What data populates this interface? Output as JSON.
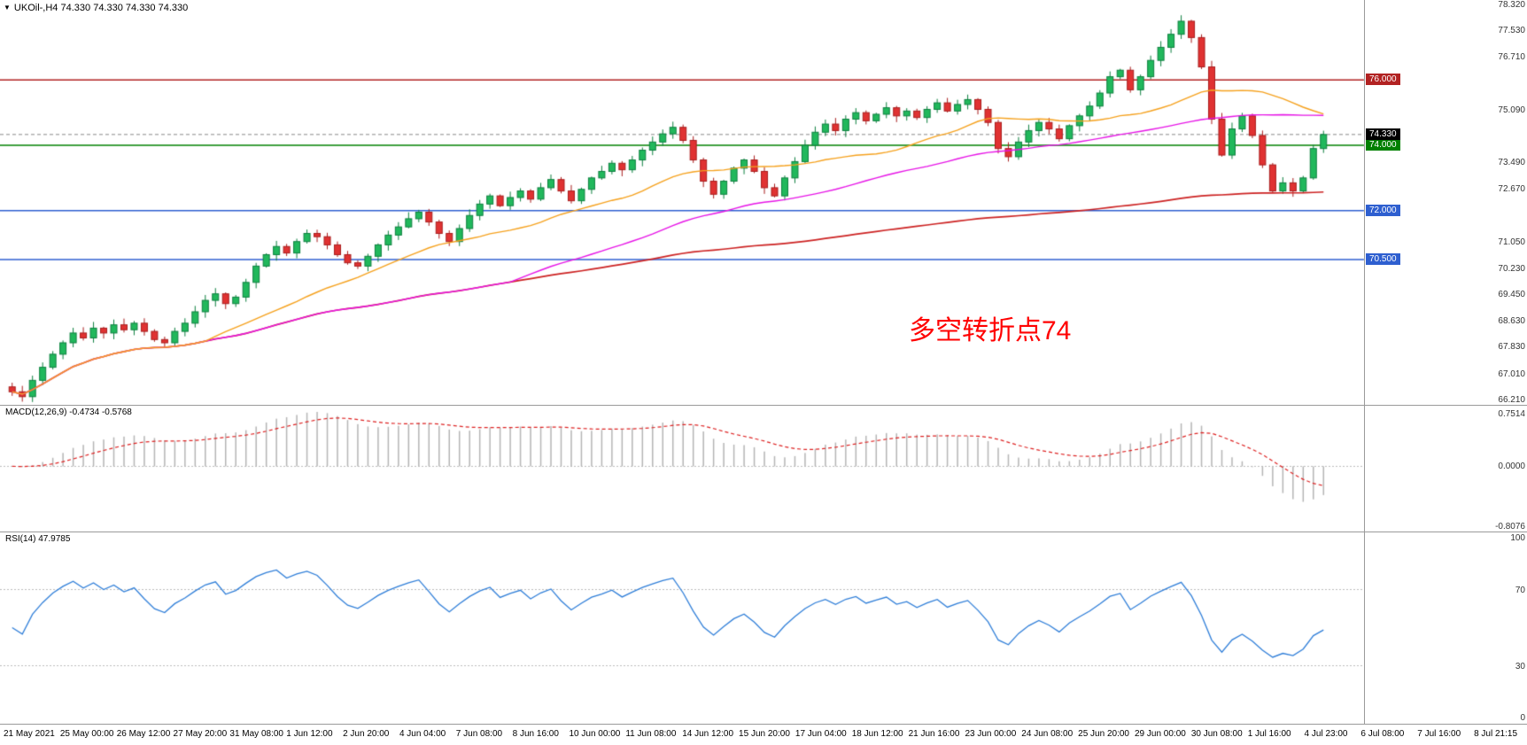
{
  "header": {
    "dropdown_icon": "▼",
    "symbol_period": "UKOil-,H4",
    "ohlc_values": "74.330 74.330 74.330 74.330"
  },
  "annotation": {
    "text": "多空转折点74",
    "color": "#ff0000"
  },
  "colors": {
    "up_fill": "#21b85c",
    "up_stroke": "#0c7f3e",
    "down_fill": "#e03232",
    "down_stroke": "#a81d1d",
    "ma_fast": "#f5a11d",
    "ma_mid": "#e614e6",
    "ma_slow": "#cc2222",
    "macd_hist": "#b5b5b5",
    "macd_signal": "#dd2222",
    "rsi_line": "#2f7ed8",
    "axis_text": "#333333",
    "level_dotted": "#bbbbbb",
    "current_price_line": "#888888"
  },
  "chart_data": [
    {
      "type": "candlestick",
      "title": "UKOil- H4",
      "first_open": 66.6,
      "closes": [
        66.45,
        66.3,
        66.8,
        67.2,
        67.6,
        67.95,
        68.25,
        68.1,
        68.4,
        68.25,
        68.5,
        68.35,
        68.55,
        68.3,
        68.05,
        67.95,
        68.3,
        68.55,
        68.9,
        69.25,
        69.45,
        69.15,
        69.35,
        69.8,
        70.3,
        70.65,
        70.9,
        70.7,
        71.05,
        71.3,
        71.2,
        70.95,
        70.65,
        70.4,
        70.3,
        70.6,
        70.95,
        71.25,
        71.5,
        71.75,
        71.95,
        71.65,
        71.3,
        71.05,
        71.45,
        71.85,
        72.2,
        72.45,
        72.15,
        72.4,
        72.6,
        72.35,
        72.7,
        72.95,
        72.6,
        72.3,
        72.65,
        73.0,
        73.2,
        73.45,
        73.25,
        73.55,
        73.85,
        74.1,
        74.35,
        74.55,
        74.15,
        73.55,
        72.9,
        72.5,
        72.9,
        73.3,
        73.55,
        73.2,
        72.7,
        72.45,
        73.0,
        73.5,
        74.0,
        74.4,
        74.65,
        74.45,
        74.8,
        75.0,
        74.75,
        74.95,
        75.15,
        74.9,
        75.05,
        74.85,
        75.1,
        75.3,
        75.05,
        75.25,
        75.4,
        75.1,
        74.7,
        73.9,
        73.65,
        74.1,
        74.45,
        74.7,
        74.5,
        74.2,
        74.6,
        74.9,
        75.2,
        75.6,
        76.1,
        76.3,
        75.7,
        76.1,
        76.6,
        77.0,
        77.4,
        77.8,
        77.3,
        76.4,
        74.8,
        73.7,
        74.5,
        74.9,
        74.3,
        73.4,
        72.6,
        72.85,
        72.6,
        73.0,
        73.9,
        74.33
      ],
      "y_axis": {
        "min": 66.05,
        "max": 78.45,
        "gridline_labels": [
          "78.320",
          "77.530",
          "76.710",
          "75.090",
          "73.490",
          "72.670",
          "71.050",
          "70.230",
          "69.450",
          "68.630",
          "67.830",
          "67.010",
          "66.210"
        ]
      },
      "hlines": [
        {
          "label": "76.000",
          "value": 76.0,
          "color": "#b22222"
        },
        {
          "label": "74.000",
          "value": 74.0,
          "color": "#008000"
        },
        {
          "label": "72.000",
          "value": 72.0,
          "color": "#2e5fd0"
        },
        {
          "label": "70.500",
          "value": 70.5,
          "color": "#2e5fd0"
        }
      ],
      "current_price": {
        "label": "74.330",
        "value": 74.33,
        "badge_bg": "#000000"
      },
      "moving_averages": [
        {
          "name": "fast-ma",
          "period": 20
        },
        {
          "name": "mid-ma",
          "period": 50
        },
        {
          "name": "slow-ma",
          "period": 999
        }
      ],
      "x_labels": [
        "21 May 2021",
        "25 May 00:00",
        "26 May 12:00",
        "27 May 20:00",
        "31 May 08:00",
        "1 Jun 12:00",
        "2 Jun 20:00",
        "4 Jun 04:00",
        "7 Jun 08:00",
        "8 Jun 16:00",
        "10 Jun 00:00",
        "11 Jun 08:00",
        "14 Jun 12:00",
        "15 Jun 20:00",
        "17 Jun 04:00",
        "18 Jun 12:00",
        "21 Jun 16:00",
        "23 Jun 00:00",
        "24 Jun 08:00",
        "25 Jun 20:00",
        "29 Jun 00:00",
        "30 Jun 08:00",
        "1 Jul 16:00",
        "4 Jul 23:00",
        "6 Jul 08:00",
        "7 Jul 16:00",
        "8 Jul 21:15"
      ]
    },
    {
      "type": "bar",
      "name": "MACD",
      "label": "MACD(12,26,9) -0.4734 -0.5768",
      "params": [
        12,
        26,
        9
      ],
      "current_values": [
        -0.4734,
        -0.5768
      ],
      "axis_labels": [
        "0.7514",
        "0.0000",
        "-0.8076"
      ],
      "axis_range": [
        0.7514,
        -0.8076
      ],
      "series_derived_from": "chart_data.0.closes"
    },
    {
      "type": "line",
      "name": "RSI",
      "label": "RSI(14) 47.9785",
      "period": 14,
      "current_value": 47.9785,
      "axis_labels": [
        "100",
        "70",
        "30",
        "0"
      ],
      "levels": [
        70,
        30
      ],
      "axis_range": [
        100,
        0
      ],
      "series_derived_from": "chart_data.0.closes"
    }
  ]
}
